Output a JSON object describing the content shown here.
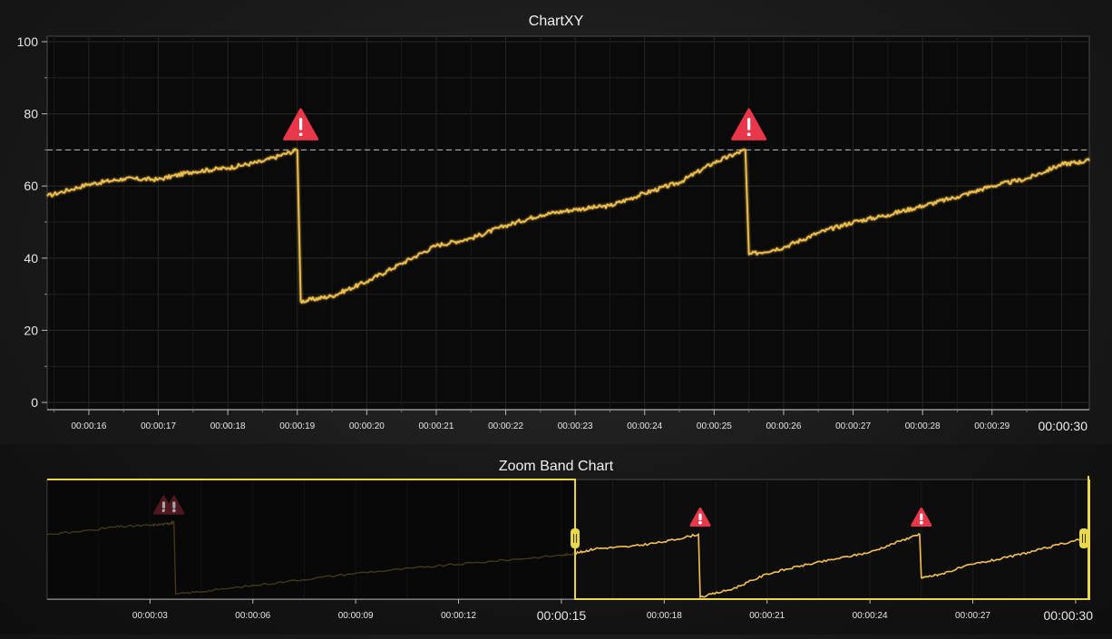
{
  "chart_data": [
    {
      "type": "line",
      "title": "ChartXY",
      "xlabel": "",
      "ylabel": "",
      "ylim": [
        0,
        100
      ],
      "y_ticks": [
        0,
        20,
        40,
        60,
        80,
        100
      ],
      "x_range": [
        15.4,
        30.4
      ],
      "x_tick_labels": [
        {
          "t": 16,
          "label": "00:00:16"
        },
        {
          "t": 17,
          "label": "00:00:17"
        },
        {
          "t": 18,
          "label": "00:00:18"
        },
        {
          "t": 19,
          "label": "00:00:19"
        },
        {
          "t": 20,
          "label": "00:00:20"
        },
        {
          "t": 21,
          "label": "00:00:21"
        },
        {
          "t": 22,
          "label": "00:00:22"
        },
        {
          "t": 23,
          "label": "00:00:23"
        },
        {
          "t": 24,
          "label": "00:00:24"
        },
        {
          "t": 25,
          "label": "00:00:25"
        },
        {
          "t": 26,
          "label": "00:00:26"
        },
        {
          "t": 27,
          "label": "00:00:27"
        },
        {
          "t": 28,
          "label": "00:00:28"
        },
        {
          "t": 29,
          "label": "00:00:29"
        }
      ],
      "x_edge_label": {
        "t": 30.3,
        "label": "00:00:30"
      },
      "threshold": 70,
      "grid": true,
      "series": [
        {
          "color": "#f0c050",
          "x": [
            15.4,
            16.0,
            16.5,
            17.0,
            17.5,
            18.0,
            18.5,
            19.0,
            19.05,
            19.5,
            20.0,
            20.5,
            21.0,
            21.5,
            22.0,
            22.5,
            23.0,
            23.5,
            24.0,
            24.5,
            25.0,
            25.45,
            25.5,
            26.0,
            26.5,
            27.0,
            27.5,
            28.0,
            28.5,
            29.0,
            29.5,
            30.0,
            30.4
          ],
          "y": [
            57.2,
            60.5,
            62.0,
            61.8,
            64.0,
            65.0,
            66.8,
            70.0,
            28.0,
            29.5,
            33.5,
            38.5,
            43.5,
            45.5,
            49.0,
            52.0,
            53.5,
            54.5,
            58.0,
            61.0,
            66.5,
            70.0,
            41.0,
            43.0,
            47.0,
            50.0,
            52.0,
            54.5,
            57.0,
            60.0,
            62.0,
            66.0,
            67.0
          ]
        }
      ],
      "alerts": [
        {
          "t": 19.05,
          "value": 70
        },
        {
          "t": 25.5,
          "value": 70
        }
      ]
    },
    {
      "type": "line",
      "title": "Zoom Band Chart",
      "x_range": [
        0.0,
        30.4
      ],
      "ylim": [
        20,
        100
      ],
      "x_tick_labels": [
        {
          "t": 3,
          "label": "00:00:03"
        },
        {
          "t": 6,
          "label": "00:00:06"
        },
        {
          "t": 9,
          "label": "00:00:09"
        },
        {
          "t": 12,
          "label": "00:00:12"
        },
        {
          "t": 15,
          "label": "00:00:15"
        },
        {
          "t": 18,
          "label": "00:00:18"
        },
        {
          "t": 21,
          "label": "00:00:21"
        },
        {
          "t": 24,
          "label": "00:00:24"
        },
        {
          "t": 27,
          "label": "00:00:27"
        },
        {
          "t": 30,
          "label": "00:00:30"
        }
      ],
      "major_ticks": [
        15,
        30
      ],
      "selection": [
        15.4,
        30.4
      ],
      "series": [
        {
          "color": "#f0c050",
          "x": [
            0.0,
            1.0,
            2.0,
            3.0,
            3.5,
            3.7,
            3.75,
            5.0,
            7.0,
            9.0,
            11.0,
            13.0,
            15.0,
            15.4,
            16.0,
            17.0,
            18.0,
            19.0,
            19.05,
            20.0,
            21.0,
            22.0,
            23.0,
            24.0,
            25.0,
            25.45,
            25.5,
            26.0,
            27.0,
            28.0,
            29.0,
            30.0,
            30.4
          ],
          "y": [
            70.0,
            72.0,
            75.0,
            76.0,
            77.0,
            78.0,
            30.0,
            33.0,
            38.5,
            44.0,
            48.0,
            52.0,
            56.0,
            57.2,
            60.5,
            61.8,
            65.0,
            70.0,
            28.0,
            33.5,
            43.5,
            49.0,
            53.5,
            58.0,
            66.5,
            70.0,
            41.0,
            43.0,
            50.0,
            54.5,
            60.0,
            66.0,
            67.0
          ]
        }
      ],
      "alerts": [
        {
          "t": 3.4,
          "value": 78,
          "dim": true
        },
        {
          "t": 3.7,
          "value": 78,
          "dim": true
        },
        {
          "t": 19.05,
          "value": 70
        },
        {
          "t": 25.5,
          "value": 70
        }
      ]
    }
  ]
}
